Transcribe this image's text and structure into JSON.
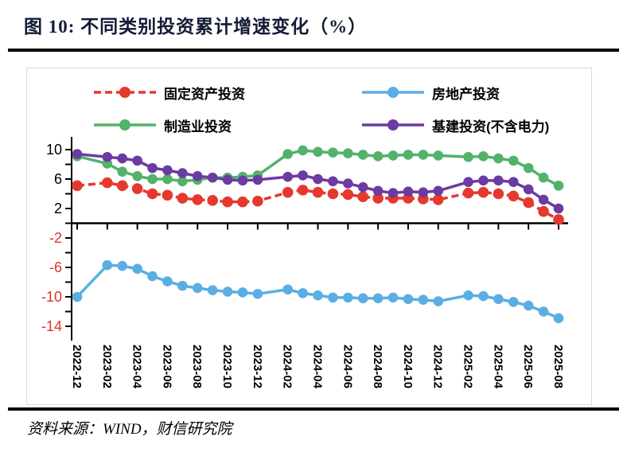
{
  "title": "图 10:  不同类别投资累计增速变化（%）",
  "source": "资料来源：WIND，财信研究院",
  "chart_data": {
    "type": "line",
    "title": "不同类别投资累计增速变化（%）",
    "figure_label": "图 10",
    "legend_position": "top",
    "grid": false,
    "x_months": [
      0,
      2,
      3,
      4,
      5,
      6,
      7,
      8,
      9,
      10,
      11,
      12,
      14,
      15,
      16,
      17,
      18,
      19,
      20,
      21,
      22,
      23,
      24,
      26,
      27,
      28,
      29,
      30,
      31,
      32
    ],
    "x_axis": {
      "tick_months": [
        0,
        2,
        4,
        6,
        8,
        10,
        12,
        14,
        16,
        18,
        20,
        22,
        24,
        26,
        28,
        30,
        32
      ],
      "tick_labels": [
        "2022-12",
        "2023-02",
        "2023-04",
        "2023-06",
        "2023-08",
        "2023-10",
        "2023-12",
        "2024-02",
        "2024-04",
        "2024-06",
        "2024-08",
        "2024-10",
        "2024-12",
        "2025-02",
        "2025-04",
        "2025-06",
        "2025-08"
      ]
    },
    "y_axis": {
      "label_values": [
        10,
        6,
        2,
        -2,
        -6,
        -10,
        -14
      ],
      "tick_values": [
        10,
        8,
        6,
        4,
        2,
        0,
        -2,
        -4,
        -6,
        -8,
        -10,
        -12,
        -14
      ],
      "range": [
        -14,
        10
      ],
      "negative_color": "#e0312b",
      "positive_color": "#000000"
    },
    "series": [
      {
        "name": "固定资产投资",
        "color": "#e5392e",
        "dashed": true,
        "values": [
          5.1,
          5.5,
          5.1,
          4.7,
          4.0,
          3.8,
          3.4,
          3.2,
          3.1,
          2.9,
          2.9,
          3.0,
          4.2,
          4.5,
          4.2,
          4.0,
          3.9,
          3.6,
          3.4,
          3.4,
          3.4,
          3.3,
          3.2,
          4.1,
          4.2,
          4.0,
          3.7,
          2.8,
          1.6,
          0.5
        ]
      },
      {
        "name": "制造业投资",
        "color": "#52b26a",
        "dashed": false,
        "values": [
          9.1,
          8.1,
          7.0,
          6.4,
          6.0,
          6.0,
          5.7,
          5.9,
          6.2,
          6.2,
          6.3,
          6.5,
          9.4,
          9.9,
          9.7,
          9.6,
          9.5,
          9.3,
          9.1,
          9.2,
          9.3,
          9.3,
          9.2,
          9.0,
          9.1,
          8.8,
          8.5,
          7.5,
          6.2,
          5.1
        ]
      },
      {
        "name": "房地产投资",
        "color": "#5aaee3",
        "dashed": false,
        "values": [
          -10.0,
          -5.7,
          -5.8,
          -6.2,
          -7.2,
          -7.9,
          -8.5,
          -8.8,
          -9.1,
          -9.3,
          -9.4,
          -9.6,
          -9.0,
          -9.5,
          -9.8,
          -10.1,
          -10.1,
          -10.2,
          -10.2,
          -10.1,
          -10.3,
          -10.4,
          -10.6,
          -9.8,
          -9.9,
          -10.3,
          -10.7,
          -11.2,
          -12.0,
          -12.9
        ]
      },
      {
        "name": "基建投资(不含电力)",
        "color": "#6c3ba2",
        "dashed": false,
        "values": [
          9.4,
          9.0,
          8.8,
          8.5,
          7.5,
          7.2,
          6.8,
          6.4,
          6.2,
          5.9,
          5.8,
          5.9,
          6.3,
          6.5,
          6.0,
          5.7,
          5.4,
          4.9,
          4.4,
          4.1,
          4.3,
          4.2,
          4.4,
          5.6,
          5.8,
          5.8,
          5.6,
          4.6,
          3.2,
          2.0
        ]
      }
    ]
  }
}
